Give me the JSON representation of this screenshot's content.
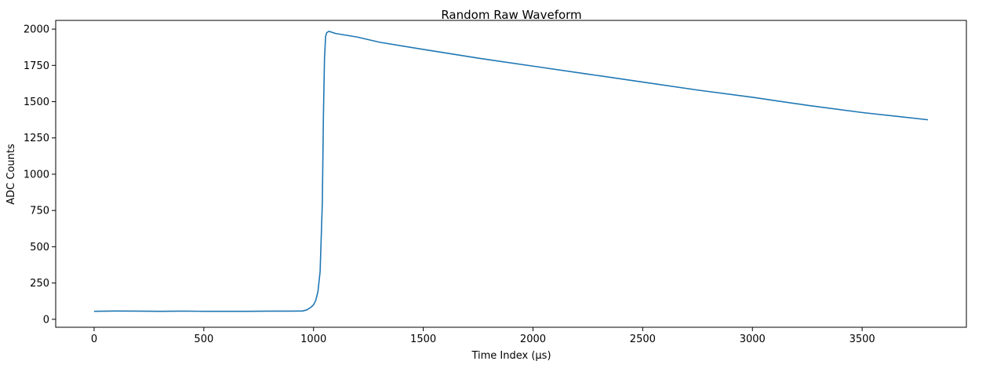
{
  "chart_data": {
    "type": "line",
    "title": "Random Raw Waveform",
    "xlabel": "Time Index (µs)",
    "ylabel": "ADC Counts",
    "xlim": [
      -175,
      3975
    ],
    "ylim": [
      -55,
      2060
    ],
    "xticks": [
      0,
      500,
      1000,
      1500,
      2000,
      2500,
      3000,
      3500
    ],
    "yticks": [
      0,
      250,
      500,
      750,
      1000,
      1250,
      1500,
      1750,
      2000
    ],
    "grid": false,
    "line_color": "#1f77b4",
    "series": [
      {
        "x": [
          0,
          100,
          200,
          300,
          400,
          500,
          600,
          700,
          800,
          900,
          950,
          970,
          990,
          1000,
          1010,
          1020,
          1030,
          1040,
          1045,
          1050,
          1055,
          1060,
          1070,
          1100,
          1200,
          1300,
          1500,
          1750,
          2000,
          2250,
          2500,
          2750,
          3000,
          3250,
          3500,
          3800
        ],
        "y": [
          55,
          57,
          56,
          55,
          56,
          55,
          55,
          55,
          56,
          56,
          57,
          65,
          85,
          100,
          130,
          190,
          330,
          800,
          1400,
          1800,
          1950,
          1975,
          1985,
          1970,
          1945,
          1910,
          1860,
          1800,
          1745,
          1690,
          1635,
          1580,
          1530,
          1475,
          1425,
          1375
        ]
      }
    ]
  }
}
